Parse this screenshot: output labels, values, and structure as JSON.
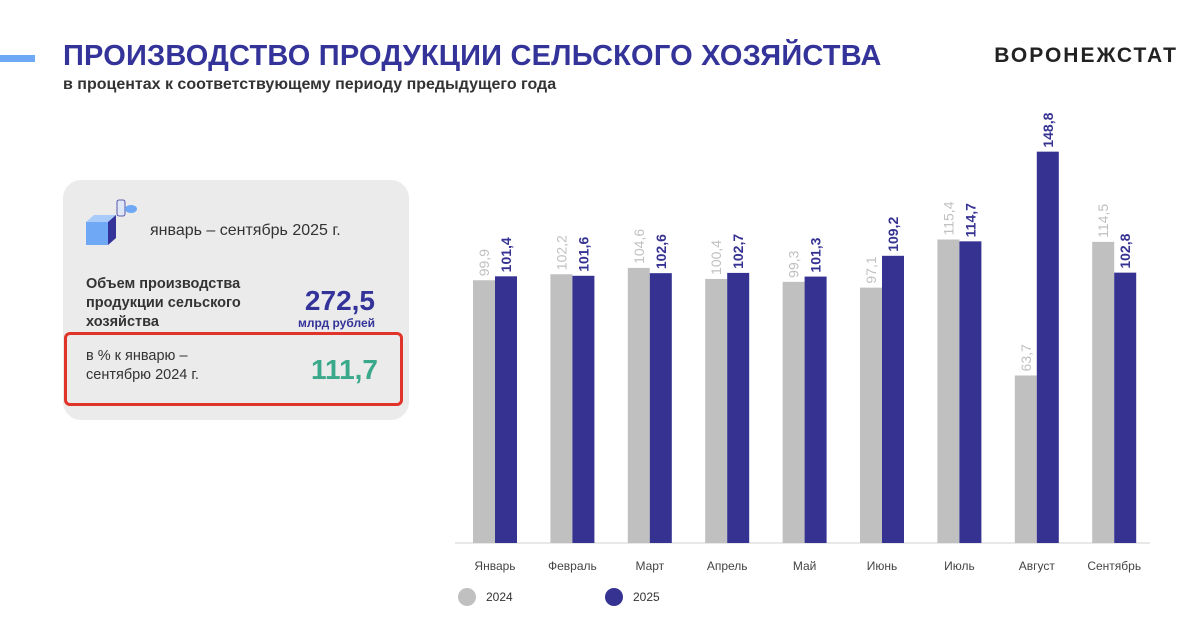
{
  "header": {
    "title": "ПРОИЗВОДСТВО ПРОДУКЦИИ СЕЛЬСКОГО ХОЗЯЙСТВА",
    "subtitle": "в процентах к соответствующему периоду предыдущего года",
    "brand": "ВОРОНЕЖСТАТ"
  },
  "card": {
    "icon": "dairy-products-icon",
    "period": "январь – сентябрь 2025 г.",
    "volume_label": "Объем  производства продукции сельского хозяйства",
    "volume_value": "272,5",
    "volume_unit": "млрд рублей",
    "pct_label_1": "в % к январю –",
    "pct_label_2": "сентябрю 2024 г.",
    "pct_value": "111,7"
  },
  "colors": {
    "series_2024": "#c0c0c0",
    "series_2025": "#363292",
    "title": "#33339a",
    "highlight": "#e0342a",
    "pct": "#3aa88a"
  },
  "chart_data": {
    "type": "bar",
    "categories": [
      "Январь",
      "Февраль",
      "Март",
      "Апрель",
      "Май",
      "Июнь",
      "Июль",
      "Август",
      "Сентябрь"
    ],
    "series": [
      {
        "name": "2024",
        "values": [
          99.9,
          102.2,
          104.6,
          100.4,
          99.3,
          97.1,
          115.4,
          63.7,
          114.5
        ],
        "labels": [
          "99,9",
          "102,2",
          "104,6",
          "100,4",
          "99,3",
          "97,1",
          "115,4",
          "63,7",
          "114,5"
        ]
      },
      {
        "name": "2025",
        "values": [
          101.4,
          101.6,
          102.6,
          102.7,
          101.3,
          109.2,
          114.7,
          148.8,
          102.8
        ],
        "labels": [
          "101,4",
          "101,6",
          "102,6",
          "102,7",
          "101,3",
          "109,2",
          "114,7",
          "148,8",
          "102,8"
        ]
      }
    ],
    "ylim": [
      0,
      150
    ],
    "grid": false,
    "legend": "bottom-left"
  }
}
